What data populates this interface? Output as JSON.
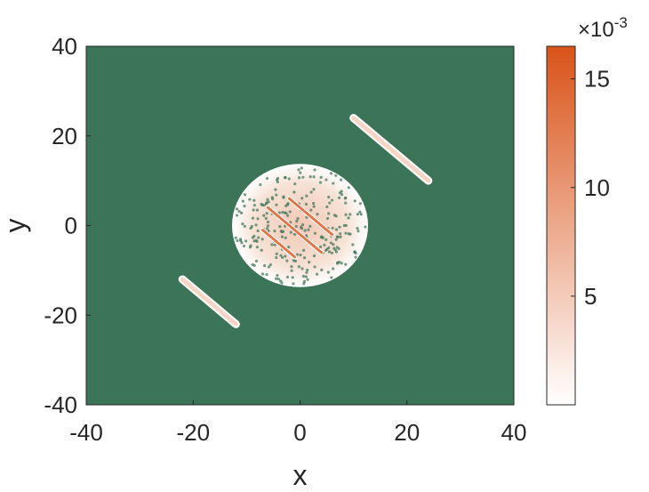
{
  "chart_data": {
    "type": "heatmap",
    "title": "",
    "xlabel": "x",
    "ylabel": "y",
    "xlim": [
      -40,
      40
    ],
    "ylim": [
      -40,
      40
    ],
    "xticks": [
      "-40",
      "-20",
      "0",
      "20",
      "40"
    ],
    "yticks": [
      "40",
      "20",
      "0",
      "-20",
      "-40"
    ],
    "background_color": "#3b7457",
    "contour_color": "#ffffff",
    "colorbar": {
      "multiplier": "×10",
      "exponent": "-3",
      "range": [
        0,
        16.5
      ],
      "ticks": [
        "15",
        "10",
        "5"
      ],
      "color_low": "#ffffff",
      "color_high": "#d95319"
    },
    "features": [
      {
        "kind": "central-blob",
        "center": [
          0,
          0
        ],
        "radius": 12
      },
      {
        "kind": "streak",
        "from": [
          10,
          24
        ],
        "to": [
          24,
          10
        ]
      },
      {
        "kind": "streak",
        "from": [
          -22,
          -12
        ],
        "to": [
          -12,
          -22
        ]
      },
      {
        "kind": "streak",
        "from": [
          -6,
          4
        ],
        "to": [
          4,
          -6
        ]
      },
      {
        "kind": "streak",
        "from": [
          -7,
          -1
        ],
        "to": [
          -1,
          -7
        ]
      },
      {
        "kind": "streak",
        "from": [
          -2,
          6
        ],
        "to": [
          6,
          -2
        ]
      }
    ]
  }
}
